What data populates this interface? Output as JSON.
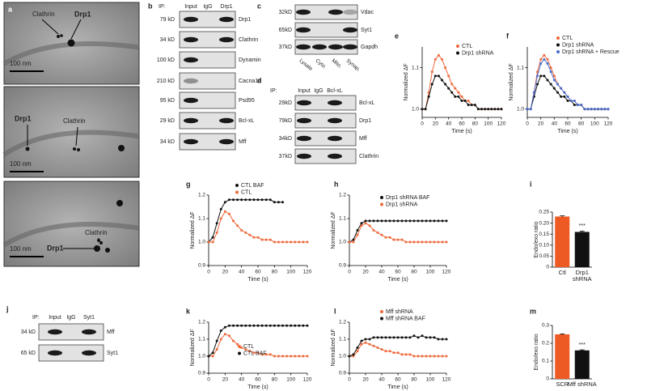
{
  "panels": {
    "a": {
      "label": "a",
      "images": [
        {
          "labels": [
            "Clathrin",
            "Drp1"
          ],
          "scale": "100 nm"
        },
        {
          "labels": [
            "Drp1",
            "Clathrin"
          ],
          "scale": "100 nm"
        },
        {
          "labels": [
            "Clathrin",
            "Drp1"
          ],
          "scale": "100 nm"
        }
      ]
    },
    "b": {
      "label": "b",
      "ip": "IP:",
      "lanes": [
        "Input",
        "IgG",
        "Drp1"
      ],
      "rows": [
        {
          "size": "79 kD",
          "protein": "Drp1"
        },
        {
          "size": "34 kD",
          "protein": "Clathrin"
        },
        {
          "size": "100 kD",
          "protein": "Dynamin"
        },
        {
          "size": "210 kD",
          "protein": "Cacna1a"
        },
        {
          "size": "95 kD",
          "protein": "Psd95"
        },
        {
          "size": "29 kD",
          "protein": "Bcl-xL"
        },
        {
          "size": "34 kD",
          "protein": "Mff"
        }
      ]
    },
    "c": {
      "label": "c",
      "lanes": [
        "Lysate",
        "Cyto.",
        "Mito.",
        "Synap."
      ],
      "rows": [
        {
          "size": "32kD",
          "protein": "Vdac"
        },
        {
          "size": "65kD",
          "protein": "Syt1"
        },
        {
          "size": "37kD",
          "protein": "Gapdh"
        }
      ]
    },
    "d": {
      "label": "d",
      "ip": "IP:",
      "lanes": [
        "Input",
        "IgG",
        "Bcl-xL"
      ],
      "rows": [
        {
          "size": "29kD",
          "protein": "Bcl-xL"
        },
        {
          "size": "79kD",
          "protein": "Drp1"
        },
        {
          "size": "34kD",
          "protein": "Mff"
        },
        {
          "size": "37kD",
          "protein": "Clathrin"
        }
      ]
    },
    "j": {
      "label": "j",
      "ip": "IP:",
      "lanes": [
        "Input",
        "IgG",
        "Syt1"
      ],
      "rows": [
        {
          "size": "34 kD",
          "protein": "Mff"
        },
        {
          "size": "65 kD",
          "protein": "Syt1"
        }
      ]
    }
  },
  "chart_data": [
    {
      "type": "line",
      "panel": "e",
      "xlabel": "Time (s)",
      "ylabel": "Normalized ΔF",
      "x": [
        0,
        5,
        10,
        15,
        20,
        25,
        30,
        35,
        40,
        45,
        50,
        55,
        60,
        65,
        70,
        75,
        80,
        85,
        90,
        95,
        100,
        105,
        110,
        115,
        120
      ],
      "xlim": [
        0,
        120
      ],
      "xticks": [
        0,
        20,
        40,
        60,
        80,
        100,
        120
      ],
      "ylim": [
        0.98,
        1.15
      ],
      "yticks": [
        {
          "value": 1,
          "label": "1.0"
        },
        1.1
      ],
      "series": [
        {
          "name": "CTL",
          "color": "#ee6a3c",
          "values": [
            1,
            1,
            1.04,
            1.09,
            1.12,
            1.13,
            1.12,
            1.1,
            1.08,
            1.06,
            1.05,
            1.04,
            1.03,
            1.02,
            1.02,
            1.01,
            1.01,
            1,
            1,
            1,
            1,
            1,
            1,
            1,
            1
          ]
        },
        {
          "name": "Drp1 shRNA",
          "color": "#111111",
          "values": [
            1,
            1,
            1.03,
            1.06,
            1.08,
            1.08,
            1.07,
            1.06,
            1.05,
            1.04,
            1.03,
            1.03,
            1.02,
            1.02,
            1.01,
            1.01,
            1.01,
            1,
            1,
            1,
            1,
            1,
            1,
            1,
            1
          ]
        }
      ]
    },
    {
      "type": "line",
      "panel": "f",
      "xlabel": "Time (s)",
      "ylabel": "Normalized ΔF",
      "x": [
        0,
        5,
        10,
        15,
        20,
        25,
        30,
        35,
        40,
        45,
        50,
        55,
        60,
        65,
        70,
        75,
        80,
        85,
        90,
        95,
        100,
        105,
        110,
        115,
        120
      ],
      "xlim": [
        0,
        120
      ],
      "xticks": [
        0,
        20,
        40,
        60,
        80,
        100,
        120
      ],
      "ylim": [
        0.98,
        1.15
      ],
      "yticks": [
        {
          "value": 1,
          "label": "1.0"
        },
        1.1
      ],
      "series": [
        {
          "name": "CTL",
          "color": "#ee6a3c",
          "values": [
            1,
            1,
            1.04,
            1.09,
            1.12,
            1.13,
            1.12,
            1.1,
            1.08,
            1.06,
            1.05,
            1.04,
            1.03,
            1.02,
            1.02,
            1.01,
            1.01,
            1,
            1,
            1,
            1,
            1,
            1,
            1,
            1
          ]
        },
        {
          "name": "Drp1 shRNA",
          "color": "#111111",
          "values": [
            1,
            1,
            1.03,
            1.06,
            1.08,
            1.08,
            1.07,
            1.06,
            1.05,
            1.04,
            1.03,
            1.03,
            1.02,
            1.02,
            1.01,
            1.01,
            1.01,
            1,
            1,
            1,
            1,
            1,
            1,
            1,
            1
          ]
        },
        {
          "name": "Drp1 shRNA + Rescue",
          "color": "#4a6fd0",
          "values": [
            1,
            1,
            1.04,
            1.08,
            1.11,
            1.12,
            1.11,
            1.09,
            1.07,
            1.06,
            1.05,
            1.04,
            1.03,
            1.02,
            1.02,
            1.01,
            1.01,
            1,
            1,
            1,
            1,
            1,
            1,
            1,
            1
          ]
        }
      ]
    },
    {
      "type": "line",
      "panel": "g",
      "xlabel": "Time (s)",
      "ylabel": "Normalized ΔF",
      "x": [
        0,
        5,
        10,
        15,
        20,
        25,
        30,
        35,
        40,
        45,
        50,
        55,
        60,
        65,
        70,
        75,
        80,
        85,
        90,
        95,
        100,
        105,
        110,
        115,
        120
      ],
      "xlim": [
        0,
        120
      ],
      "xticks": [
        0,
        20,
        40,
        60,
        80,
        100,
        120
      ],
      "ylim": [
        0.9,
        1.2
      ],
      "yticks": [
        0.9,
        {
          "value": 1,
          "label": "1.0"
        },
        1.1,
        1.2
      ],
      "series": [
        {
          "name": "CTL BAF",
          "color": "#111111",
          "values": [
            1,
            1.02,
            1.08,
            1.14,
            1.17,
            1.18,
            1.18,
            1.18,
            1.18,
            1.18,
            1.18,
            1.18,
            1.18,
            1.18,
            1.18,
            1.18,
            1.17,
            1.17,
            1.17,
            null,
            null,
            null,
            null,
            null,
            null
          ]
        },
        {
          "name": "CTL",
          "color": "#ee6a3c",
          "values": [
            1,
            1,
            1.04,
            1.1,
            1.13,
            1.12,
            1.09,
            1.07,
            1.05,
            1.04,
            1.03,
            1.02,
            1.02,
            1.01,
            1.01,
            1.01,
            1,
            1,
            1,
            1,
            1,
            1,
            1,
            1,
            1
          ]
        }
      ]
    },
    {
      "type": "line",
      "panel": "h",
      "xlabel": "Time (s)",
      "ylabel": "Normalized ΔF",
      "x": [
        0,
        5,
        10,
        15,
        20,
        25,
        30,
        35,
        40,
        45,
        50,
        55,
        60,
        65,
        70,
        75,
        80,
        85,
        90,
        95,
        100,
        105,
        110,
        115,
        120
      ],
      "xlim": [
        0,
        120
      ],
      "xticks": [
        0,
        20,
        40,
        60,
        80,
        100,
        120
      ],
      "ylim": [
        0.9,
        1.2
      ],
      "yticks": [
        0.9,
        {
          "value": 1,
          "label": "1.0"
        },
        1.1,
        1.2
      ],
      "series": [
        {
          "name": "Drp1 shRNA BAF",
          "color": "#111111",
          "values": [
            1,
            1.01,
            1.05,
            1.08,
            1.09,
            1.09,
            1.09,
            1.09,
            1.09,
            1.09,
            1.09,
            1.09,
            1.09,
            1.09,
            1.09,
            1.09,
            1.09,
            1.09,
            1.09,
            1.09,
            1.09,
            1.09,
            1.09,
            1.09,
            1.09
          ]
        },
        {
          "name": "Drp1 shRNA",
          "color": "#ee6a3c",
          "values": [
            1,
            1,
            1.03,
            1.07,
            1.08,
            1.07,
            1.05,
            1.04,
            1.03,
            1.02,
            1.02,
            1.01,
            1.01,
            1.01,
            1,
            1,
            1,
            1,
            1,
            1,
            1,
            1,
            1,
            1,
            1
          ]
        }
      ]
    },
    {
      "type": "bar",
      "panel": "i",
      "ylabel": "Endo/exo ratio",
      "annotation": "***",
      "categories": [
        "Ctl",
        "Drp1 shRNA"
      ],
      "values": [
        0.23,
        0.16
      ],
      "errors": [
        0.003,
        0.004
      ],
      "colors": [
        "#ee5a24",
        "#111111"
      ],
      "ylim": [
        0,
        0.25
      ],
      "yticks": [
        0,
        0.05,
        {
          "value": 0.1,
          "label": "0.10"
        },
        0.15,
        {
          "value": 0.2,
          "label": "0.20"
        },
        0.25
      ]
    },
    {
      "type": "line",
      "panel": "k",
      "xlabel": "Time (s)",
      "ylabel": "Normalized ΔF",
      "x": [
        0,
        5,
        10,
        15,
        20,
        25,
        30,
        35,
        40,
        45,
        50,
        55,
        60,
        65,
        70,
        75,
        80,
        85,
        90,
        95,
        100,
        105,
        110,
        115,
        120
      ],
      "xlim": [
        0,
        120
      ],
      "xticks": [
        0,
        20,
        40,
        60,
        80,
        100,
        120
      ],
      "ylim": [
        0.9,
        1.2
      ],
      "yticks": [
        0.9,
        {
          "value": 1,
          "label": "1.0"
        },
        1.1,
        1.2
      ],
      "series": [
        {
          "name": "CTL",
          "color": "#ee6a3c",
          "values": [
            1,
            1,
            1.04,
            1.1,
            1.13,
            1.12,
            1.09,
            1.07,
            1.05,
            1.04,
            1.03,
            1.02,
            1.02,
            1.01,
            1.01,
            1.01,
            1,
            1,
            1,
            1,
            1,
            1,
            1,
            1,
            1
          ]
        },
        {
          "name": "CTL BAF",
          "color": "#111111",
          "values": [
            1,
            1.02,
            1.09,
            1.15,
            1.17,
            1.18,
            1.18,
            1.18,
            1.18,
            1.18,
            1.18,
            1.18,
            1.18,
            1.18,
            1.18,
            1.18,
            1.18,
            1.18,
            1.18,
            1.18,
            1.18,
            1.18,
            1.18,
            1.18,
            1.18
          ]
        }
      ]
    },
    {
      "type": "line",
      "panel": "l",
      "xlabel": "Time (s)",
      "ylabel": "Normalized ΔF",
      "x": [
        0,
        5,
        10,
        15,
        20,
        25,
        30,
        35,
        40,
        45,
        50,
        55,
        60,
        65,
        70,
        75,
        80,
        85,
        90,
        95,
        100,
        105,
        110,
        115,
        120
      ],
      "xlim": [
        0,
        120
      ],
      "xticks": [
        0,
        20,
        40,
        60,
        80,
        100,
        120
      ],
      "ylim": [
        0.9,
        1.2
      ],
      "yticks": [
        0.9,
        {
          "value": 1,
          "label": "1.0"
        },
        1.1,
        1.2
      ],
      "series": [
        {
          "name": "Mff shRNA",
          "color": "#ee6a3c",
          "values": [
            1,
            1,
            1.03,
            1.07,
            1.08,
            1.07,
            1.06,
            1.05,
            1.04,
            1.03,
            1.03,
            1.02,
            1.02,
            1.01,
            1.01,
            1.01,
            1,
            1,
            1,
            1,
            1,
            1,
            1,
            1,
            1
          ]
        },
        {
          "name": "Mff shRNA BAF",
          "color": "#111111",
          "values": [
            1,
            1.01,
            1.05,
            1.09,
            1.1,
            1.1,
            1.11,
            1.11,
            1.11,
            1.11,
            1.11,
            1.11,
            1.11,
            1.11,
            1.11,
            1.11,
            1.12,
            1.11,
            1.12,
            1.11,
            1.11,
            1.11,
            1.1,
            1.1,
            1.1
          ]
        }
      ]
    },
    {
      "type": "bar",
      "panel": "m",
      "ylabel": "Endo/exo ratio",
      "annotation": "***",
      "categories": [
        "SCR",
        "Mff shRNA"
      ],
      "values": [
        0.25,
        0.16
      ],
      "errors": [
        0.003,
        0.003
      ],
      "colors": [
        "#ee5a24",
        "#111111"
      ],
      "ylim": [
        0,
        0.3
      ],
      "yticks": [
        0,
        0.1,
        0.2,
        0.3
      ]
    }
  ]
}
